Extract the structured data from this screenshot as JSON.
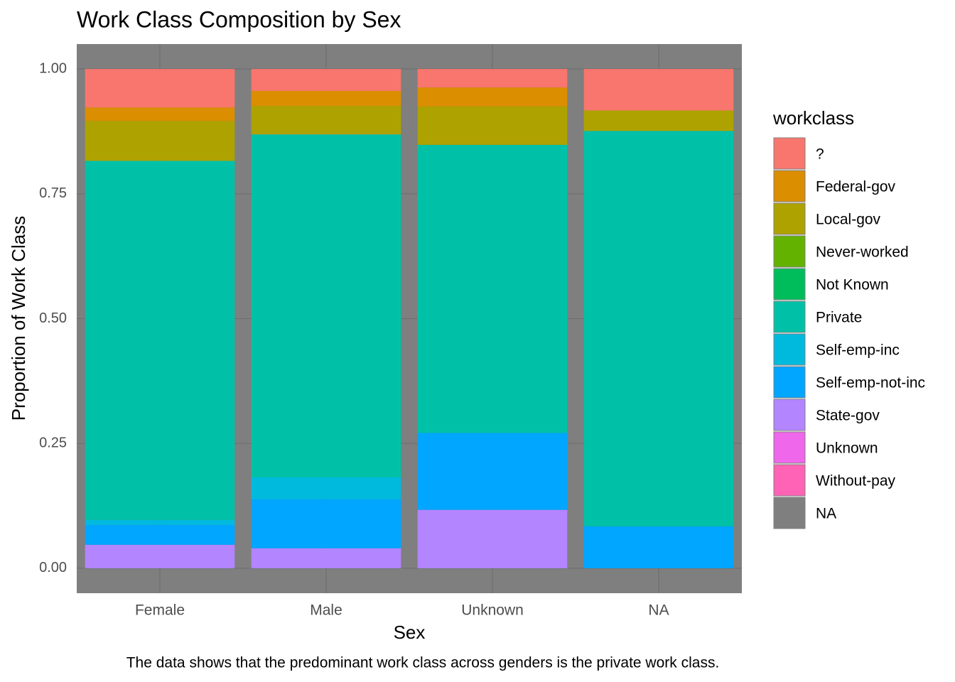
{
  "chart_data": {
    "type": "bar",
    "stacked": true,
    "title": "Work Class Composition by Sex",
    "x_label": "Sex",
    "y_label": "Proportion of Work Class",
    "legend_title": "workclass",
    "caption": "The data shows that the predominant work class across genders is the private work class.",
    "categories": [
      "Female",
      "Male",
      "Unknown",
      "NA"
    ],
    "ylim": [
      -0.05,
      1.05
    ],
    "yticks": [
      {
        "value": 0,
        "label": "0.00"
      },
      {
        "value": 0.25,
        "label": "0.25"
      },
      {
        "value": 0.5,
        "label": "0.50"
      },
      {
        "value": 0.75,
        "label": "0.75"
      },
      {
        "value": 1,
        "label": "1.00"
      }
    ],
    "grid": true,
    "series": [
      {
        "name": "?",
        "color": "#f8766d",
        "values": [
          0.077,
          0.044,
          0.037,
          0.083
        ]
      },
      {
        "name": "Federal-gov",
        "color": "#db8e00",
        "values": [
          0.027,
          0.03,
          0.038,
          0
        ]
      },
      {
        "name": "Local-gov",
        "color": "#aea200",
        "values": [
          0.08,
          0.057,
          0.077,
          0.041
        ]
      },
      {
        "name": "Never-worked",
        "color": "#64b200",
        "values": [
          0,
          0,
          0,
          0
        ]
      },
      {
        "name": "Not Known",
        "color": "#00bd5c",
        "values": [
          0,
          0,
          0,
          0
        ]
      },
      {
        "name": "Private",
        "color": "#00c1a7",
        "values": [
          0.719,
          0.687,
          0.577,
          0.792
        ]
      },
      {
        "name": "Self-emp-inc",
        "color": "#00bade",
        "values": [
          0.01,
          0.044,
          0,
          0
        ]
      },
      {
        "name": "Self-emp-not-inc",
        "color": "#00a6ff",
        "values": [
          0.04,
          0.098,
          0.154,
          0.084
        ]
      },
      {
        "name": "State-gov",
        "color": "#b385ff",
        "values": [
          0.047,
          0.04,
          0.117,
          0
        ]
      },
      {
        "name": "Unknown",
        "color": "#ef67eb",
        "values": [
          0,
          0,
          0,
          0
        ]
      },
      {
        "name": "Without-pay",
        "color": "#ff63b6",
        "values": [
          0,
          0,
          0,
          0
        ]
      },
      {
        "name": "NA",
        "color": "#7f7f7f",
        "values": [
          0,
          0,
          0,
          0
        ]
      }
    ]
  }
}
